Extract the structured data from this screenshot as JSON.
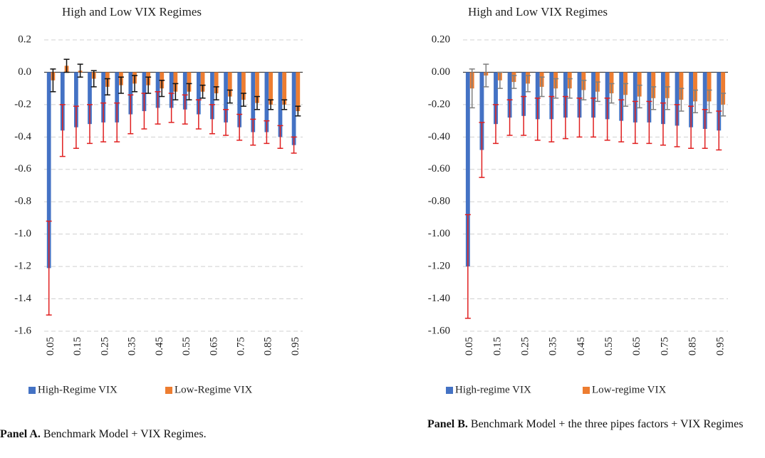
{
  "chart_data": [
    {
      "type": "bar",
      "title": "High and Low VIX Regimes",
      "caption_label": "Panel A.",
      "caption_text": "Benchmark Model + VIX Regimes.",
      "categories": [
        "0.05",
        null,
        "0.15",
        null,
        "0.25",
        null,
        "0.35",
        null,
        "0.45",
        null,
        "0.55",
        null,
        "0.65",
        null,
        "0.75",
        null,
        "0.85",
        null,
        "0.95"
      ],
      "ylim": [
        -1.6,
        0.2
      ],
      "yticks": [
        0.2,
        {
          "value": 0,
          "label": "0.0"
        },
        -0.2,
        -0.4,
        -0.6,
        -0.8,
        {
          "value": -1,
          "label": "-1.0"
        },
        -1.2,
        -1.4,
        -1.6
      ],
      "grid": true,
      "series": [
        {
          "name": "High-Regime VIX",
          "color": "#4472c4",
          "error_color": "#e02020",
          "values": [
            -1.21,
            -0.36,
            -0.34,
            -0.32,
            -0.31,
            -0.31,
            -0.26,
            -0.24,
            -0.22,
            -0.22,
            -0.23,
            -0.26,
            -0.29,
            -0.31,
            -0.34,
            -0.37,
            -0.37,
            -0.4,
            -0.45
          ],
          "errors": [
            0.29,
            0.16,
            0.13,
            0.12,
            0.12,
            0.12,
            0.12,
            0.11,
            0.1,
            0.09,
            0.09,
            0.09,
            0.09,
            0.08,
            0.08,
            0.08,
            0.07,
            0.07,
            0.05
          ]
        },
        {
          "name": "Low-Regime VIX",
          "color": "#ed7d31",
          "error_color": "#111111",
          "values": [
            -0.05,
            0.04,
            0.01,
            -0.04,
            -0.09,
            -0.08,
            -0.07,
            -0.08,
            -0.1,
            -0.12,
            -0.12,
            -0.12,
            -0.13,
            -0.15,
            -0.17,
            -0.19,
            -0.2,
            -0.2,
            -0.24
          ],
          "errors": [
            0.07,
            0.04,
            0.04,
            0.05,
            0.05,
            0.05,
            0.05,
            0.05,
            0.05,
            0.05,
            0.05,
            0.04,
            0.04,
            0.04,
            0.04,
            0.04,
            0.03,
            0.03,
            0.03
          ]
        }
      ]
    },
    {
      "type": "bar",
      "title": "High and Low VIX Regimes",
      "caption_label": "Panel B.",
      "caption_text": "Benchmark Model + the three pipes factors + VIX Regimes",
      "categories": [
        "0.05",
        null,
        "0.15",
        null,
        "0.25",
        null,
        "0.35",
        null,
        "0.45",
        null,
        "0.55",
        null,
        "0.65",
        null,
        "0.75",
        null,
        "0.85",
        null,
        "0.95"
      ],
      "ylim": [
        -1.6,
        0.2
      ],
      "yticks": [
        {
          "value": 0.2,
          "label": "0.20"
        },
        {
          "value": 0,
          "label": "0.00"
        },
        {
          "value": -0.2,
          "label": "-0.20"
        },
        {
          "value": -0.4,
          "label": "-0.40"
        },
        {
          "value": -0.6,
          "label": "-0.60"
        },
        {
          "value": -0.8,
          "label": "-0.80"
        },
        {
          "value": -1,
          "label": "-1.00"
        },
        {
          "value": -1.2,
          "label": "-1.20"
        },
        {
          "value": -1.4,
          "label": "-1.40"
        },
        {
          "value": -1.6,
          "label": "-1.60"
        }
      ],
      "grid": true,
      "series": [
        {
          "name": "High-regime VIX",
          "color": "#4472c4",
          "error_color": "#e02020",
          "values": [
            -1.2,
            -0.48,
            -0.32,
            -0.28,
            -0.27,
            -0.29,
            -0.29,
            -0.28,
            -0.28,
            -0.28,
            -0.29,
            -0.3,
            -0.31,
            -0.31,
            -0.32,
            -0.33,
            -0.34,
            -0.35,
            -0.36
          ],
          "errors": [
            0.32,
            0.17,
            0.12,
            0.11,
            0.12,
            0.13,
            0.14,
            0.13,
            0.12,
            0.12,
            0.13,
            0.13,
            0.13,
            0.13,
            0.13,
            0.13,
            0.13,
            0.12,
            0.12
          ]
        },
        {
          "name": "Low-regime VIX",
          "color": "#ed7d31",
          "error_color": "#7f7f7f",
          "values": [
            -0.1,
            -0.02,
            -0.05,
            -0.06,
            -0.07,
            -0.09,
            -0.1,
            -0.1,
            -0.11,
            -0.12,
            -0.13,
            -0.14,
            -0.15,
            -0.16,
            -0.16,
            -0.17,
            -0.18,
            -0.18,
            -0.2
          ],
          "errors": [
            0.12,
            0.07,
            0.05,
            0.04,
            0.05,
            0.06,
            0.06,
            0.06,
            0.06,
            0.06,
            0.06,
            0.07,
            0.07,
            0.07,
            0.07,
            0.07,
            0.07,
            0.07,
            0.07
          ]
        }
      ]
    }
  ]
}
